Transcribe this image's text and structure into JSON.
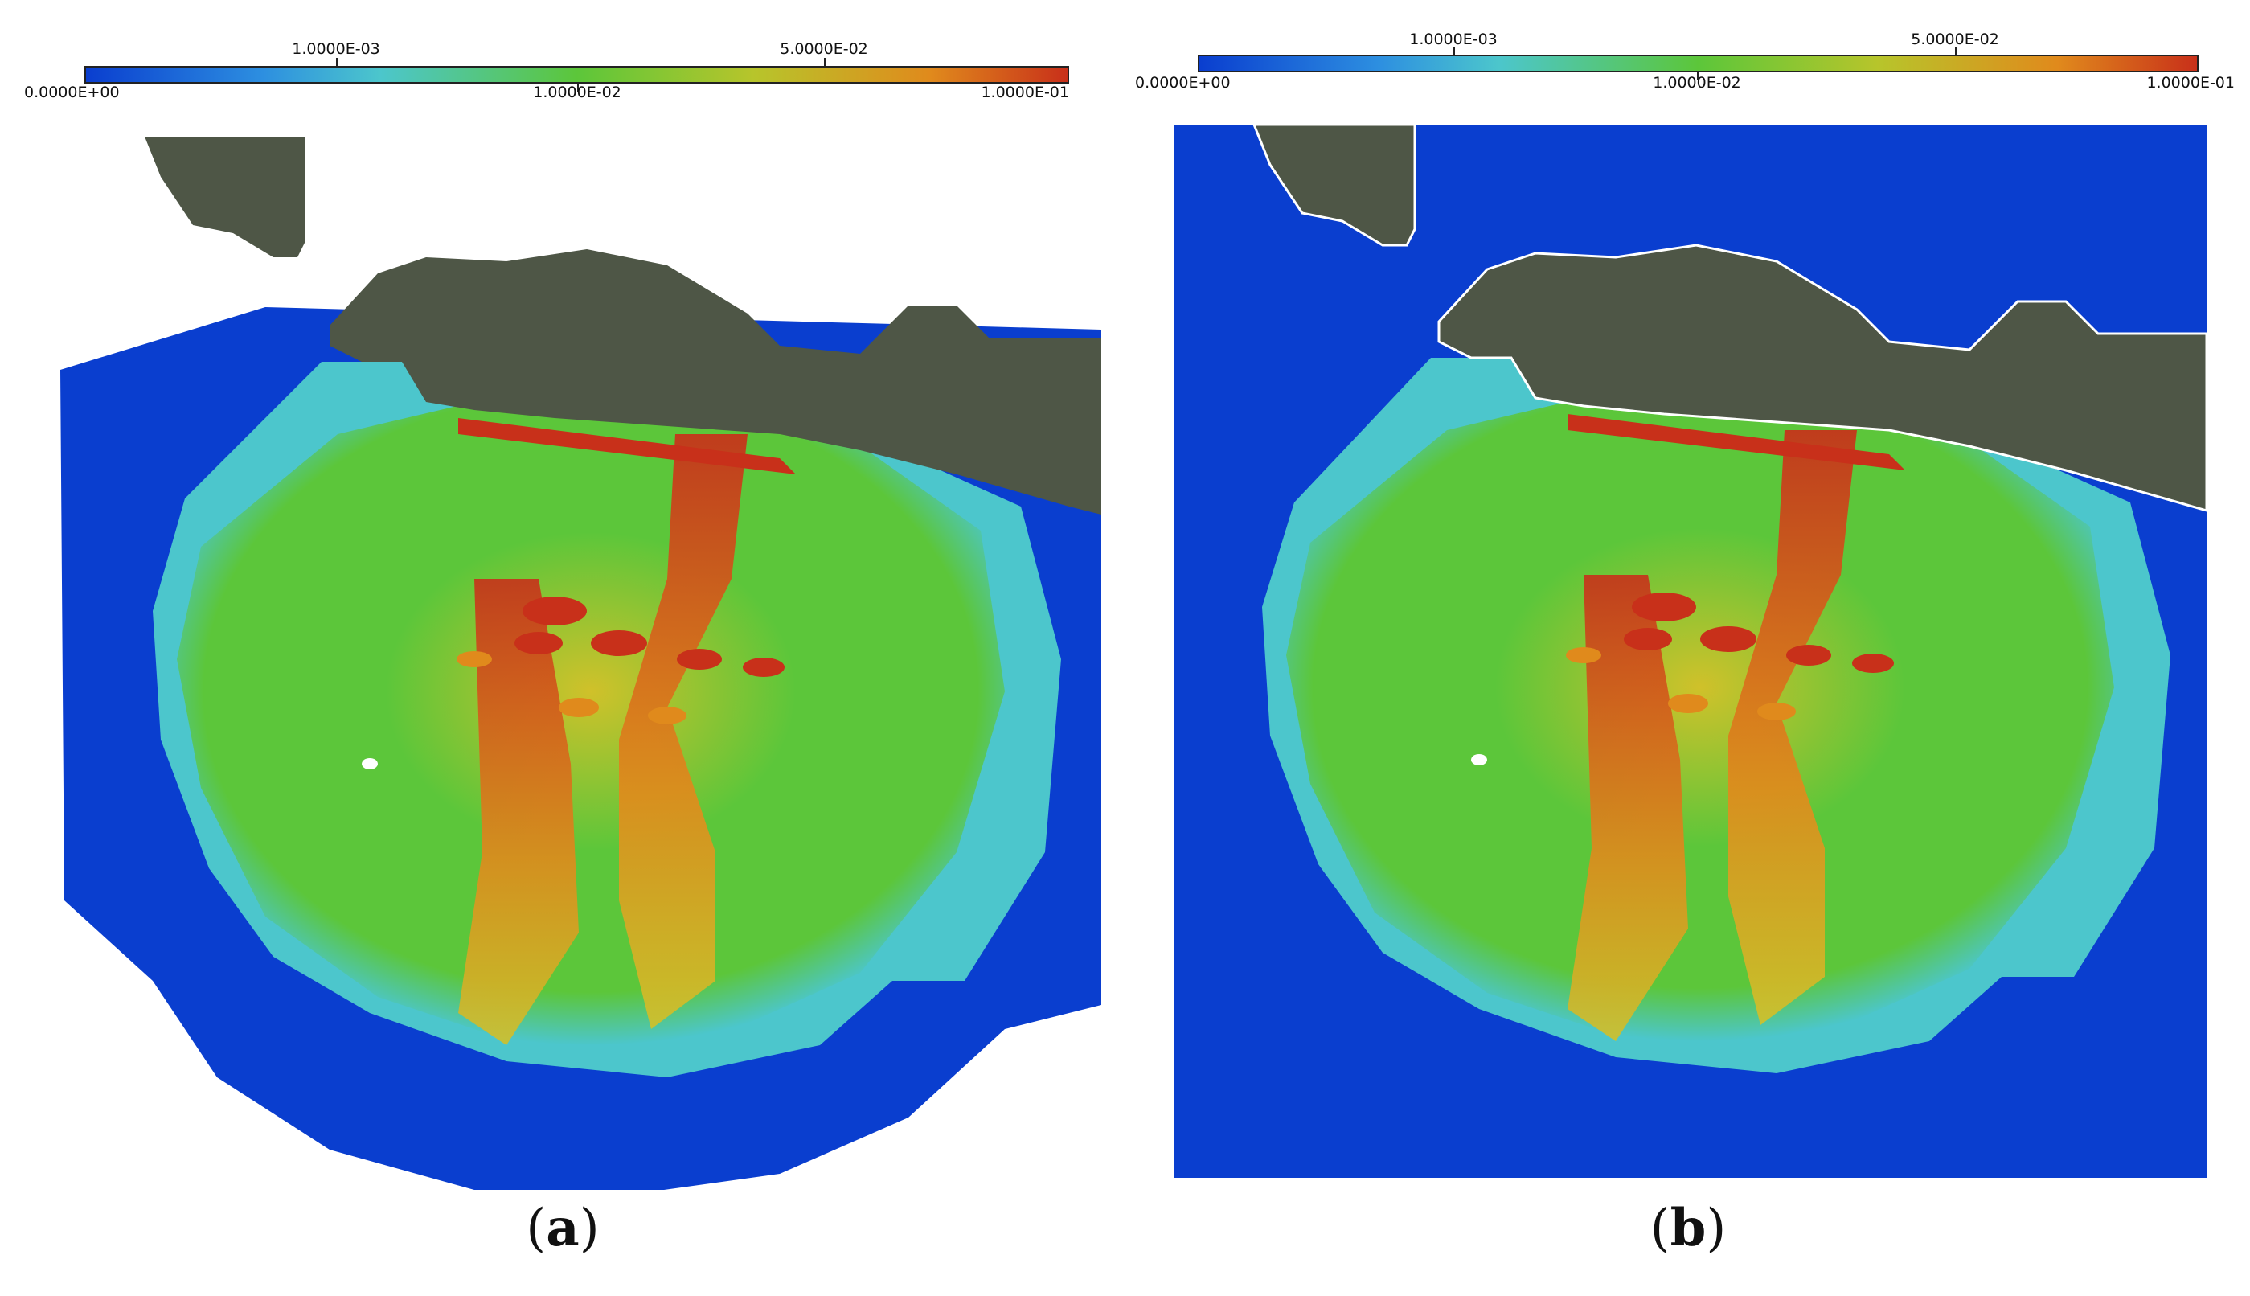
{
  "figure": {
    "panels": [
      {
        "id": "a",
        "caption_open": "(",
        "caption_letter": "a",
        "caption_close": ")",
        "colorbar": {
          "labels_top": [
            "1.0000E-03",
            "5.0000E-02"
          ],
          "labels_bottom": [
            "0.0000E+00",
            "1.0000E-02",
            "1.0000E-01"
          ]
        }
      },
      {
        "id": "b",
        "caption_open": "(",
        "caption_letter": "b",
        "caption_close": ")",
        "colorbar": {
          "labels_top": [
            "1.0000E-03",
            "5.0000E-02"
          ],
          "labels_bottom": [
            "0.0000E+00",
            "1.0000E-02",
            "1.0000E-01"
          ]
        }
      }
    ],
    "colors": {
      "ocean": "#0a3ecf",
      "land": "#4e5646",
      "low": "#4cc6cc",
      "mid": "#5cc63a",
      "high_mid": "#d0c12a",
      "high": "#d23b10"
    },
    "colormap_stops": [
      "#0a3ecf",
      "#2d8fe0",
      "#4cc6cc",
      "#5cc63a",
      "#b7c52b",
      "#e08a1c",
      "#c8301a"
    ]
  }
}
